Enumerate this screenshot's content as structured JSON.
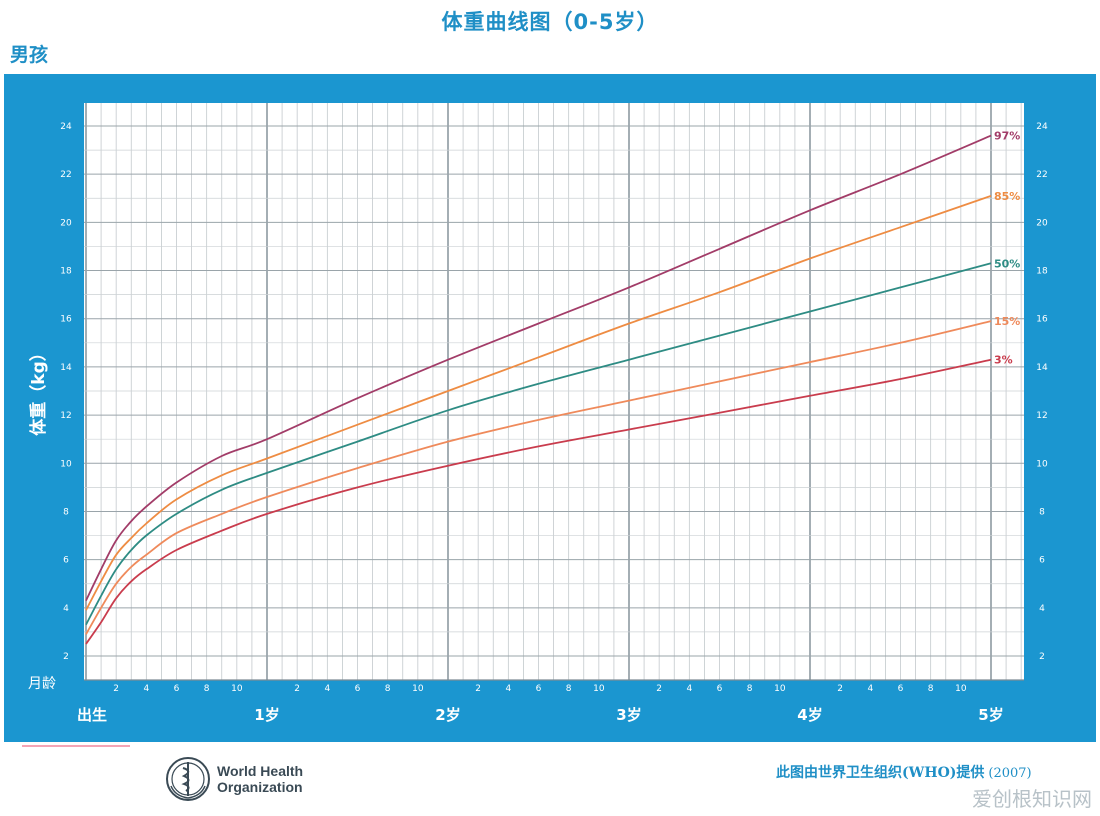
{
  "header": {
    "title": "体重曲线图（0-5岁）",
    "gender": "男孩"
  },
  "chart_data": {
    "type": "line",
    "ylabel": "体重（kg）",
    "xlabel_months": "月龄",
    "x_units": "months",
    "ylim": [
      2,
      24.5
    ],
    "xlim": [
      0,
      60
    ],
    "y_ticks": [
      2,
      4,
      6,
      8,
      10,
      12,
      14,
      16,
      18,
      20,
      22,
      24
    ],
    "month_tick_labels": [
      "2",
      "4",
      "6",
      "8",
      "10"
    ],
    "age_labels": [
      {
        "month": 0,
        "label": "出生"
      },
      {
        "month": 12,
        "label": "1岁"
      },
      {
        "month": 24,
        "label": "2岁"
      },
      {
        "month": 36,
        "label": "3岁"
      },
      {
        "month": 48,
        "label": "4岁"
      },
      {
        "month": 60,
        "label": "5岁"
      }
    ],
    "x": [
      0,
      1,
      2,
      3,
      4,
      6,
      9,
      12,
      18,
      24,
      30,
      36,
      42,
      48,
      54,
      60
    ],
    "series": [
      {
        "name": "97%",
        "color": "#a23c68",
        "values": [
          4.3,
          5.6,
          6.8,
          7.6,
          8.2,
          9.2,
          10.3,
          11.0,
          12.7,
          14.3,
          15.8,
          17.3,
          18.9,
          20.5,
          22.0,
          23.6
        ]
      },
      {
        "name": "85%",
        "color": "#ee8c43",
        "values": [
          3.9,
          5.1,
          6.2,
          6.9,
          7.5,
          8.5,
          9.5,
          10.2,
          11.6,
          13.0,
          14.4,
          15.8,
          17.1,
          18.5,
          19.8,
          21.1
        ]
      },
      {
        "name": "50%",
        "color": "#2e8c84",
        "values": [
          3.3,
          4.5,
          5.6,
          6.4,
          7.0,
          7.9,
          8.9,
          9.6,
          10.9,
          12.2,
          13.3,
          14.3,
          15.3,
          16.3,
          17.3,
          18.3
        ]
      },
      {
        "name": "15%",
        "color": "#ef8a5b",
        "values": [
          2.9,
          4.0,
          5.0,
          5.7,
          6.2,
          7.1,
          7.9,
          8.6,
          9.8,
          10.9,
          11.8,
          12.6,
          13.4,
          14.2,
          15.0,
          15.9
        ]
      },
      {
        "name": "3%",
        "color": "#c93c4d",
        "values": [
          2.5,
          3.4,
          4.4,
          5.1,
          5.6,
          6.4,
          7.2,
          7.9,
          9.0,
          9.9,
          10.7,
          11.4,
          12.1,
          12.8,
          13.5,
          14.3
        ]
      }
    ]
  },
  "footer": {
    "org_line1": "World Health",
    "org_line2": "Organization",
    "credit": "此图由世界卫生组织(WHO)提供",
    "credit_year": "(2007)",
    "watermark": "爱创根知识网"
  }
}
